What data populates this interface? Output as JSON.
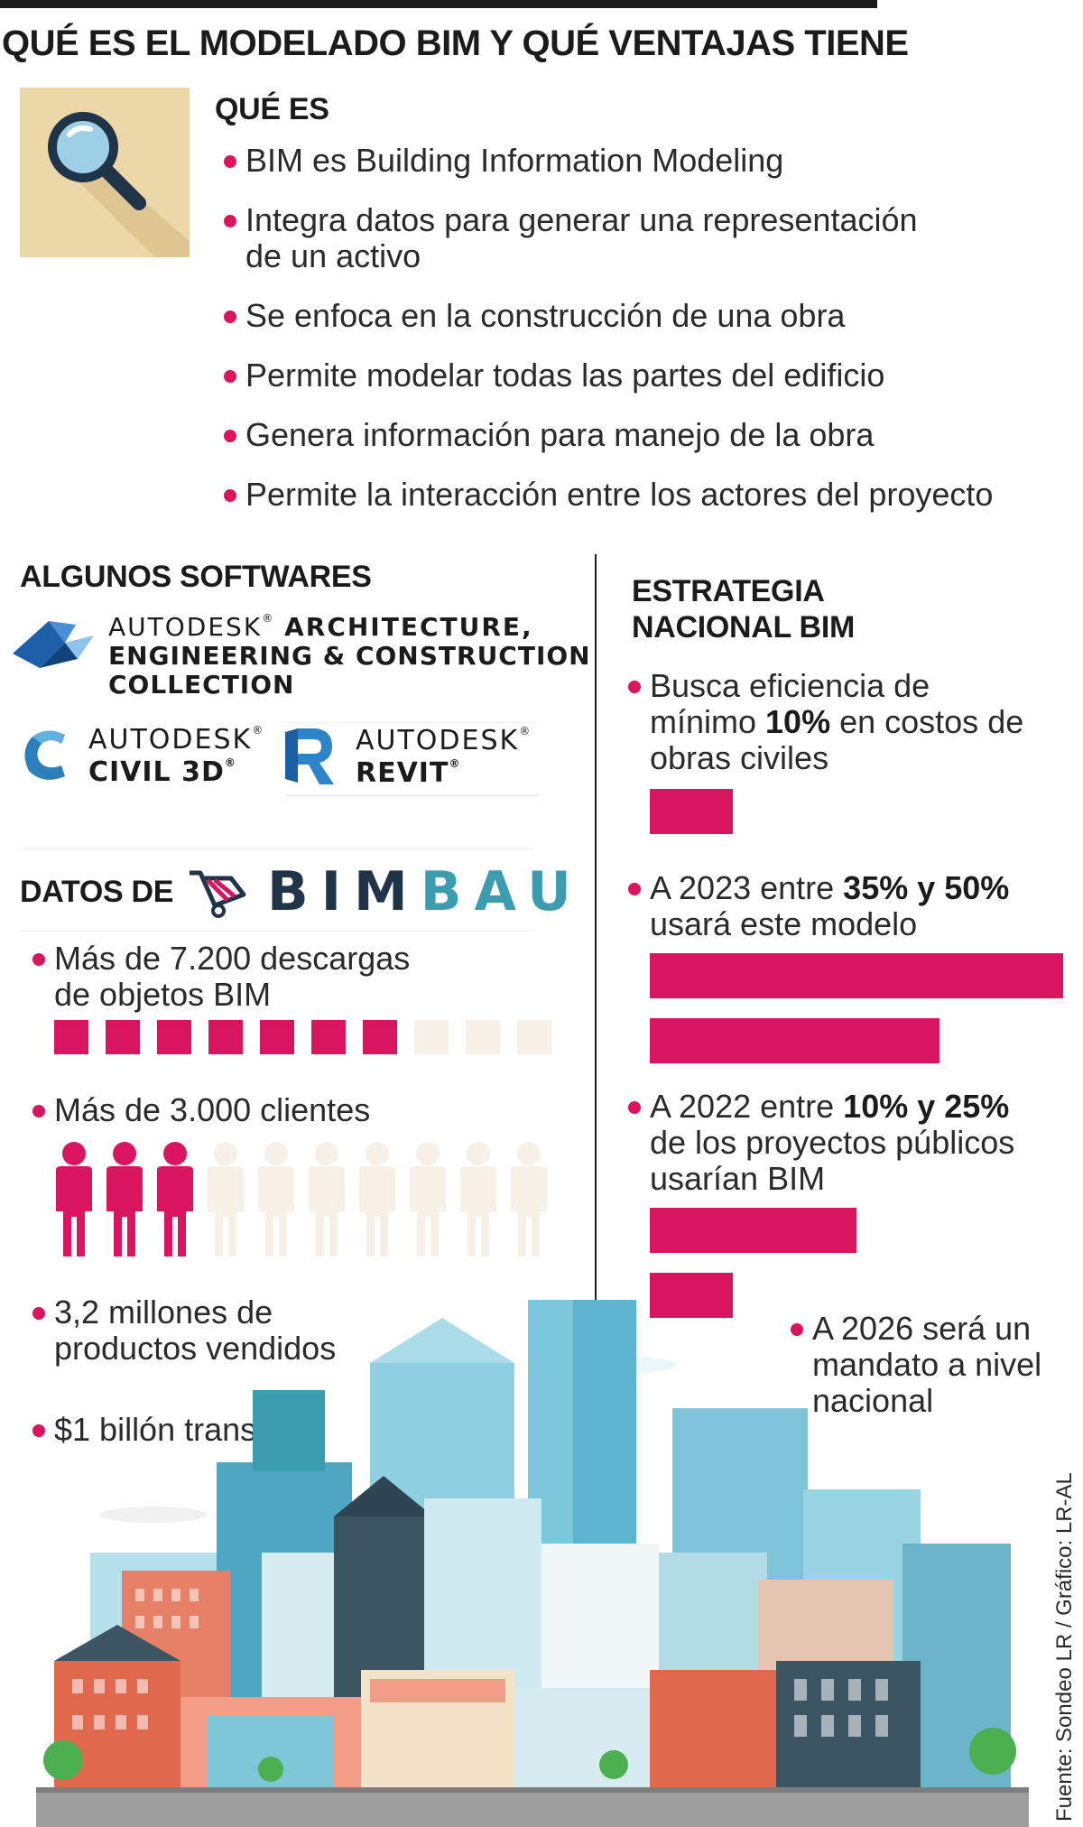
{
  "title": "QUÉ ES EL MODELADO BIM Y QUÉ VENTAJAS TIENE",
  "que_es": {
    "heading": "QUÉ ES",
    "items": [
      "BIM es Building Information Modeling",
      "Integra datos para generar una representación de un activo",
      "Se enfoca en la construcción de una obra",
      "Permite modelar todas las partes del edificio",
      "Genera información para manejo de la obra",
      "Permite la interacción entre los actores del proyecto"
    ]
  },
  "softwares": {
    "heading": "ALGUNOS SOFTWARES",
    "aec": {
      "brand": "AUTODESK",
      "line1": "ARCHITECTURE,",
      "line2": "ENGINEERING & CONSTRUCTION",
      "line3": "COLLECTION"
    },
    "civil": {
      "brand": "AUTODESK",
      "product": "CIVIL 3D"
    },
    "revit": {
      "brand": "AUTODESK",
      "product": "REVIT"
    }
  },
  "bimbau": {
    "heading": "DATOS DE",
    "logo_a": "BIM",
    "logo_b": "BAU",
    "stats": [
      {
        "label": "Más de 7.200 descargas de objetos BIM",
        "filled": 7,
        "total": 10
      },
      {
        "label": "Más de 3.000 clientes",
        "filled": 3,
        "total": 10
      },
      {
        "label": "3,2 millones de productos vendidos"
      },
      {
        "label": "$1 billón transado"
      }
    ]
  },
  "estrategia": {
    "heading_line1": "ESTRATEGIA",
    "heading_line2": "NACIONAL BIM",
    "items": [
      {
        "pre": "Busca eficiencia de mínimo ",
        "bold": "10%",
        "post": " en costos de obras civiles",
        "bars": [
          10
        ]
      },
      {
        "pre": "A 2023 entre ",
        "bold": "35% y 50%",
        "post": " usará este modelo",
        "bars": [
          50,
          35
        ]
      },
      {
        "pre": "A 2022 entre ",
        "bold": "10% y 25%",
        "post": " de los proyectos públicos usarían BIM",
        "bars": [
          25,
          10
        ]
      },
      {
        "pre": "A 2026 será un mandato a nivel nacional",
        "bold": "",
        "post": "",
        "bars": []
      }
    ]
  },
  "source": "Fuente: Sondeo LR / Gráfico: LR-AL",
  "colors": {
    "accent": "#d9155f",
    "muted": "#f7f0e6",
    "dark": "#1b1b1b",
    "teal": "#3d9db0"
  }
}
